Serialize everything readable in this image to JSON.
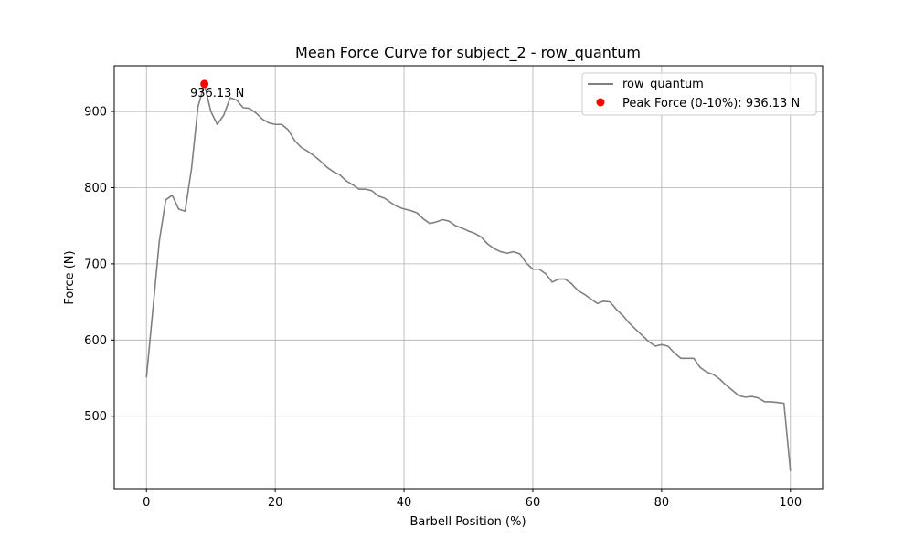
{
  "chart_data": {
    "type": "line",
    "title": "Mean Force Curve for subject_2 - row_quantum",
    "xlabel": "Barbell Position (%)",
    "ylabel": "Force (N)",
    "xlim": [
      -5,
      105
    ],
    "ylim": [
      405,
      960
    ],
    "xticks": [
      0,
      20,
      40,
      60,
      80,
      100
    ],
    "yticks": [
      500,
      600,
      700,
      800,
      900
    ],
    "grid": true,
    "legend_position": "top-right",
    "series": [
      {
        "name": "row_quantum",
        "color": "#808080",
        "x": [
          0,
          1,
          2,
          3,
          4,
          5,
          6,
          7,
          8,
          9,
          10,
          11,
          12,
          13,
          14,
          15,
          16,
          17,
          18,
          19,
          20,
          21,
          22,
          23,
          24,
          25,
          26,
          27,
          28,
          29,
          30,
          31,
          32,
          33,
          34,
          35,
          36,
          37,
          38,
          39,
          40,
          41,
          42,
          43,
          44,
          45,
          46,
          47,
          48,
          49,
          50,
          51,
          52,
          53,
          54,
          55,
          56,
          57,
          58,
          59,
          60,
          61,
          62,
          63,
          64,
          65,
          66,
          67,
          68,
          69,
          70,
          71,
          72,
          73,
          74,
          75,
          76,
          77,
          78,
          79,
          80,
          81,
          82,
          83,
          84,
          85,
          86,
          87,
          88,
          89,
          90,
          91,
          92,
          93,
          94,
          95,
          96,
          97,
          98,
          99,
          100
        ],
        "y": [
          551,
          640,
          730,
          784,
          790,
          772,
          769,
          825,
          906,
          936,
          900,
          883,
          895,
          918,
          915,
          905,
          904,
          898,
          890,
          885,
          883,
          883,
          876,
          862,
          853,
          848,
          842,
          835,
          827,
          821,
          817,
          809,
          804,
          798,
          798,
          796,
          789,
          786,
          780,
          775,
          772,
          770,
          767,
          759,
          753,
          755,
          758,
          756,
          750,
          747,
          743,
          740,
          735,
          726,
          720,
          716,
          714,
          716,
          713,
          701,
          693,
          693,
          687,
          676,
          680,
          680,
          674,
          665,
          660,
          654,
          648,
          651,
          650,
          640,
          632,
          622,
          614,
          606,
          598,
          592,
          594,
          592,
          583,
          576,
          576,
          576,
          564,
          558,
          555,
          549,
          541,
          534,
          527,
          525,
          526,
          524,
          519,
          519,
          518,
          517,
          428
        ]
      }
    ],
    "peak": {
      "name": "Peak Force (0-10%): 936.13 N",
      "x": 9,
      "y": 936.13,
      "color": "#ff0000",
      "label": "936.13 N"
    }
  }
}
